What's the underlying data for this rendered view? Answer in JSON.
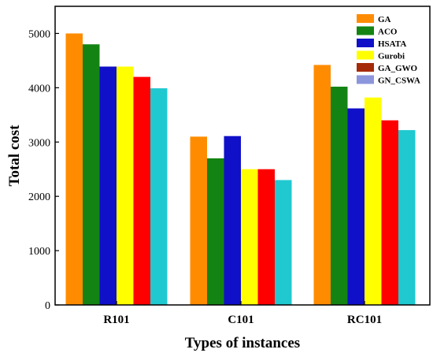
{
  "chart_data": {
    "type": "bar",
    "xlabel": "Types of instances",
    "ylabel": "Total cost",
    "ylim": [
      0,
      5500
    ],
    "yticks": [
      0,
      1000,
      2000,
      3000,
      4000,
      5000
    ],
    "categories": [
      "R101",
      "C101",
      "RC101"
    ],
    "legend_position": "top-right",
    "series": [
      {
        "name": "GA",
        "color": "#ff8c00",
        "values": [
          5000,
          3100,
          4420
        ]
      },
      {
        "name": "ACO",
        "color": "#138413",
        "values": [
          4800,
          2700,
          4020
        ]
      },
      {
        "name": "HSATA",
        "color": "#1010c8",
        "values": [
          4390,
          3110,
          3620
        ]
      },
      {
        "name": "Gurobi",
        "color": "#ffff00",
        "values": [
          4390,
          2500,
          3820
        ]
      },
      {
        "name": "GA_GWO",
        "color": "#ff0000",
        "legend_color": "#a52a0a",
        "values": [
          4200,
          2500,
          3400
        ]
      },
      {
        "name": "GN_CSWA",
        "color": "#20c8d0",
        "legend_color": "#8c96dc",
        "values": [
          3990,
          2300,
          3220
        ]
      }
    ]
  }
}
